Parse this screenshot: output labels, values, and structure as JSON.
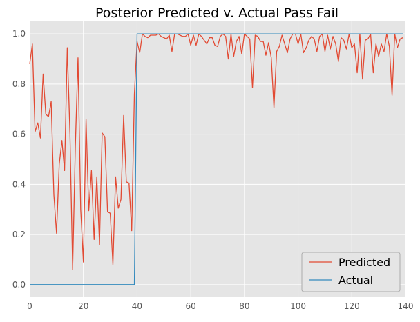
{
  "chart_data": {
    "type": "line",
    "title": "Posterior Predicted v. Actual Pass Fail",
    "xlabel": "",
    "ylabel": "",
    "xlim": [
      0,
      140
    ],
    "ylim": [
      -0.05,
      1.05
    ],
    "xticks": [
      0,
      20,
      40,
      60,
      80,
      100,
      120,
      140
    ],
    "yticks": [
      0.0,
      0.2,
      0.4,
      0.6,
      0.8,
      1.0
    ],
    "xtick_labels": [
      "0",
      "20",
      "40",
      "60",
      "80",
      "100",
      "120",
      "140"
    ],
    "ytick_labels": [
      "0.0",
      "0.2",
      "0.4",
      "0.6",
      "0.8",
      "1.0"
    ],
    "grid": true,
    "legend_position": "bottom-right",
    "colors": {
      "plot_bg": "#e5e5e5",
      "grid": "#ffffff",
      "predicted": "#e24a33",
      "actual": "#348abd"
    },
    "series": [
      {
        "name": "Predicted",
        "values": [
          0.88,
          0.96,
          0.61,
          0.645,
          0.585,
          0.84,
          0.68,
          0.67,
          0.73,
          0.36,
          0.205,
          0.48,
          0.575,
          0.455,
          0.945,
          0.6,
          0.06,
          0.55,
          0.905,
          0.3,
          0.09,
          0.66,
          0.295,
          0.455,
          0.18,
          0.43,
          0.16,
          0.605,
          0.59,
          0.29,
          0.285,
          0.08,
          0.43,
          0.305,
          0.34,
          0.675,
          0.41,
          0.405,
          0.215,
          0.76,
          0.97,
          0.925,
          1.0,
          0.99,
          0.985,
          0.995,
          0.995,
          0.995,
          1.0,
          0.99,
          0.985,
          0.98,
          0.995,
          0.93,
          1.0,
          1.0,
          0.995,
          0.99,
          0.99,
          1.0,
          0.955,
          0.995,
          0.955,
          1.0,
          0.99,
          0.975,
          0.96,
          0.985,
          0.985,
          0.955,
          0.95,
          0.99,
          1.0,
          0.99,
          0.9,
          1.0,
          0.91,
          0.97,
          0.99,
          0.92,
          1.0,
          0.99,
          0.98,
          0.785,
          0.995,
          0.99,
          0.97,
          0.97,
          0.915,
          0.965,
          0.905,
          0.705,
          0.93,
          0.95,
          0.995,
          0.96,
          0.925,
          0.98,
          1.0,
          1.0,
          0.96,
          1.0,
          0.925,
          0.945,
          0.975,
          0.99,
          0.98,
          0.93,
          0.99,
          1.0,
          0.93,
          0.995,
          0.94,
          0.99,
          0.96,
          0.89,
          0.985,
          0.975,
          0.94,
          1.0,
          0.945,
          0.96,
          0.845,
          1.0,
          0.82,
          0.975,
          0.98,
          1.0,
          0.845,
          0.96,
          0.91,
          0.96,
          0.93,
          1.0,
          0.95,
          0.755,
          1.0,
          0.945,
          0.98,
          0.985
        ]
      },
      {
        "name": "Actual",
        "values": [
          0,
          0,
          0,
          0,
          0,
          0,
          0,
          0,
          0,
          0,
          0,
          0,
          0,
          0,
          0,
          0,
          0,
          0,
          0,
          0,
          0,
          0,
          0,
          0,
          0,
          0,
          0,
          0,
          0,
          0,
          0,
          0,
          0,
          0,
          0,
          0,
          0,
          0,
          0,
          0,
          1,
          1,
          1,
          1,
          1,
          1,
          1,
          1,
          1,
          1,
          1,
          1,
          1,
          1,
          1,
          1,
          1,
          1,
          1,
          1,
          1,
          1,
          1,
          1,
          1,
          1,
          1,
          1,
          1,
          1,
          1,
          1,
          1,
          1,
          1,
          1,
          1,
          1,
          1,
          1,
          1,
          1,
          1,
          1,
          1,
          1,
          1,
          1,
          1,
          1,
          1,
          1,
          1,
          1,
          1,
          1,
          1,
          1,
          1,
          1,
          1,
          1,
          1,
          1,
          1,
          1,
          1,
          1,
          1,
          1,
          1,
          1,
          1,
          1,
          1,
          1,
          1,
          1,
          1,
          1,
          1,
          1,
          1,
          1,
          1,
          1,
          1,
          1,
          1,
          1,
          1,
          1,
          1,
          1,
          1,
          1,
          1,
          1,
          1,
          1
        ]
      }
    ]
  }
}
